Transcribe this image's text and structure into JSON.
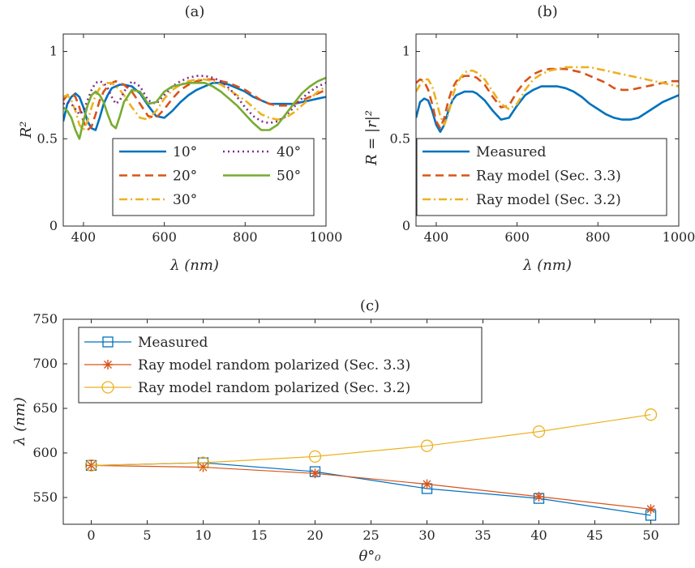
{
  "chart_data": [
    {
      "type": "line",
      "title": "(a)",
      "xlabel": "λ (nm)",
      "ylabel": "R²",
      "xlim": [
        350,
        1000
      ],
      "ylim": [
        0,
        1.1
      ],
      "xticks": [
        "400",
        "600",
        "800",
        "1000"
      ],
      "yticks": [
        "0",
        "0.5",
        "1"
      ],
      "legend_position": "bottom-right",
      "series": [
        {
          "name": "10°",
          "color": "#0072BD",
          "style": "solid",
          "x": [
            350,
            360,
            370,
            380,
            390,
            400,
            410,
            420,
            430,
            440,
            450,
            460,
            470,
            480,
            490,
            500,
            520,
            540,
            560,
            580,
            600,
            620,
            640,
            660,
            680,
            700,
            720,
            740,
            760,
            780,
            800,
            820,
            840,
            860,
            880,
            900,
            920,
            940,
            960,
            980,
            1000
          ],
          "y": [
            0.6,
            0.7,
            0.74,
            0.76,
            0.74,
            0.68,
            0.6,
            0.56,
            0.55,
            0.62,
            0.7,
            0.75,
            0.79,
            0.8,
            0.81,
            0.81,
            0.8,
            0.76,
            0.69,
            0.63,
            0.62,
            0.66,
            0.71,
            0.75,
            0.78,
            0.8,
            0.82,
            0.82,
            0.81,
            0.79,
            0.77,
            0.74,
            0.72,
            0.7,
            0.7,
            0.7,
            0.7,
            0.71,
            0.72,
            0.73,
            0.74
          ]
        },
        {
          "name": "20°",
          "color": "#D95319",
          "style": "dashed",
          "x": [
            350,
            360,
            370,
            380,
            390,
            400,
            410,
            420,
            430,
            440,
            450,
            460,
            470,
            480,
            490,
            500,
            520,
            540,
            560,
            580,
            600,
            620,
            640,
            660,
            680,
            700,
            720,
            740,
            760,
            780,
            800,
            820,
            840,
            860,
            880,
            900,
            920,
            940,
            960,
            980,
            1000
          ],
          "y": [
            0.72,
            0.75,
            0.76,
            0.74,
            0.68,
            0.6,
            0.55,
            0.57,
            0.64,
            0.72,
            0.77,
            0.8,
            0.82,
            0.83,
            0.82,
            0.81,
            0.77,
            0.7,
            0.63,
            0.62,
            0.67,
            0.73,
            0.78,
            0.81,
            0.83,
            0.84,
            0.84,
            0.83,
            0.82,
            0.8,
            0.78,
            0.75,
            0.72,
            0.7,
            0.69,
            0.69,
            0.7,
            0.72,
            0.74,
            0.76,
            0.78
          ]
        },
        {
          "name": "30°",
          "color": "#EDB120",
          "style": "dashdot",
          "x": [
            350,
            360,
            370,
            380,
            390,
            400,
            410,
            420,
            430,
            440,
            450,
            460,
            470,
            480,
            490,
            500,
            520,
            540,
            560,
            580,
            600,
            620,
            640,
            660,
            680,
            700,
            720,
            740,
            760,
            780,
            800,
            820,
            840,
            860,
            880,
            900,
            920,
            940,
            960,
            980,
            1000
          ],
          "y": [
            0.74,
            0.75,
            0.72,
            0.66,
            0.58,
            0.55,
            0.6,
            0.68,
            0.75,
            0.79,
            0.81,
            0.82,
            0.82,
            0.8,
            0.78,
            0.75,
            0.68,
            0.62,
            0.61,
            0.66,
            0.73,
            0.78,
            0.81,
            0.83,
            0.84,
            0.84,
            0.83,
            0.81,
            0.78,
            0.75,
            0.72,
            0.68,
            0.64,
            0.62,
            0.61,
            0.62,
            0.65,
            0.69,
            0.73,
            0.77,
            0.8
          ]
        },
        {
          "name": "40°",
          "color": "#7E2F8E",
          "style": "dotted",
          "x": [
            350,
            360,
            370,
            380,
            390,
            400,
            410,
            420,
            430,
            440,
            450,
            460,
            470,
            480,
            490,
            500,
            520,
            540,
            560,
            580,
            600,
            620,
            640,
            660,
            680,
            700,
            720,
            740,
            760,
            780,
            800,
            820,
            840,
            860,
            880,
            900,
            920,
            940,
            960,
            980,
            1000
          ],
          "y": [
            0.7,
            0.71,
            0.7,
            0.67,
            0.64,
            0.66,
            0.72,
            0.78,
            0.82,
            0.83,
            0.82,
            0.79,
            0.74,
            0.7,
            0.72,
            0.77,
            0.83,
            0.8,
            0.72,
            0.7,
            0.75,
            0.8,
            0.83,
            0.85,
            0.86,
            0.86,
            0.85,
            0.83,
            0.79,
            0.74,
            0.68,
            0.63,
            0.6,
            0.59,
            0.6,
            0.63,
            0.68,
            0.73,
            0.77,
            0.8,
            0.82
          ]
        },
        {
          "name": "50°",
          "color": "#77AC30",
          "style": "solid",
          "x": [
            350,
            360,
            370,
            380,
            390,
            400,
            410,
            420,
            430,
            440,
            450,
            460,
            470,
            480,
            490,
            500,
            520,
            540,
            560,
            580,
            600,
            620,
            640,
            660,
            680,
            700,
            720,
            740,
            760,
            780,
            800,
            820,
            840,
            860,
            880,
            900,
            920,
            940,
            960,
            980,
            1000
          ],
          "y": [
            0.68,
            0.66,
            0.62,
            0.55,
            0.5,
            0.6,
            0.69,
            0.75,
            0.77,
            0.75,
            0.71,
            0.64,
            0.58,
            0.56,
            0.63,
            0.71,
            0.78,
            0.77,
            0.7,
            0.71,
            0.77,
            0.8,
            0.81,
            0.82,
            0.82,
            0.82,
            0.8,
            0.77,
            0.73,
            0.69,
            0.64,
            0.59,
            0.55,
            0.55,
            0.58,
            0.64,
            0.7,
            0.76,
            0.8,
            0.83,
            0.85
          ]
        }
      ]
    },
    {
      "type": "line",
      "title": "(b)",
      "xlabel": "λ (nm)",
      "ylabel": "R = |r|²",
      "xlim": [
        350,
        1000
      ],
      "ylim": [
        0,
        1.1
      ],
      "xticks": [
        "400",
        "600",
        "800",
        "1000"
      ],
      "yticks": [
        "0",
        "0.5",
        "1"
      ],
      "legend_position": "bottom-right",
      "series": [
        {
          "name": "Measured",
          "color": "#0072BD",
          "style": "solid",
          "x": [
            350,
            360,
            370,
            380,
            390,
            400,
            410,
            420,
            430,
            440,
            450,
            460,
            470,
            480,
            490,
            500,
            520,
            540,
            560,
            580,
            600,
            620,
            640,
            660,
            680,
            700,
            720,
            740,
            760,
            780,
            800,
            820,
            840,
            860,
            880,
            900,
            920,
            940,
            960,
            980,
            1000
          ],
          "y": [
            0.62,
            0.71,
            0.73,
            0.72,
            0.66,
            0.58,
            0.54,
            0.58,
            0.66,
            0.72,
            0.75,
            0.76,
            0.77,
            0.77,
            0.77,
            0.76,
            0.72,
            0.66,
            0.61,
            0.62,
            0.69,
            0.75,
            0.78,
            0.8,
            0.8,
            0.8,
            0.79,
            0.77,
            0.74,
            0.7,
            0.67,
            0.64,
            0.62,
            0.61,
            0.61,
            0.62,
            0.65,
            0.68,
            0.71,
            0.73,
            0.75
          ]
        },
        {
          "name": "Ray model (Sec. 3.3)",
          "color": "#D95319",
          "style": "dashed",
          "x": [
            350,
            360,
            370,
            380,
            390,
            400,
            410,
            420,
            430,
            440,
            450,
            460,
            470,
            480,
            490,
            500,
            520,
            540,
            560,
            580,
            600,
            620,
            640,
            660,
            680,
            700,
            720,
            740,
            760,
            780,
            800,
            820,
            840,
            860,
            880,
            900,
            920,
            940,
            960,
            980,
            1000
          ],
          "y": [
            0.82,
            0.84,
            0.83,
            0.78,
            0.7,
            0.6,
            0.56,
            0.62,
            0.72,
            0.79,
            0.83,
            0.85,
            0.86,
            0.86,
            0.86,
            0.85,
            0.81,
            0.74,
            0.68,
            0.69,
            0.77,
            0.83,
            0.87,
            0.89,
            0.9,
            0.9,
            0.9,
            0.89,
            0.88,
            0.86,
            0.84,
            0.82,
            0.79,
            0.78,
            0.78,
            0.79,
            0.8,
            0.81,
            0.82,
            0.83,
            0.83
          ]
        },
        {
          "name": "Ray model (Sec. 3.2)",
          "color": "#EDB120",
          "style": "dashdot",
          "x": [
            350,
            360,
            370,
            380,
            390,
            400,
            410,
            420,
            430,
            440,
            450,
            460,
            470,
            480,
            490,
            500,
            520,
            540,
            560,
            580,
            600,
            620,
            640,
            660,
            680,
            700,
            720,
            740,
            760,
            780,
            800,
            820,
            840,
            860,
            880,
            900,
            920,
            940,
            960,
            980,
            1000
          ],
          "y": [
            0.77,
            0.81,
            0.84,
            0.84,
            0.8,
            0.72,
            0.63,
            0.58,
            0.64,
            0.74,
            0.81,
            0.85,
            0.88,
            0.89,
            0.89,
            0.88,
            0.84,
            0.77,
            0.7,
            0.67,
            0.7,
            0.78,
            0.84,
            0.87,
            0.89,
            0.9,
            0.91,
            0.91,
            0.91,
            0.91,
            0.9,
            0.89,
            0.88,
            0.87,
            0.86,
            0.85,
            0.84,
            0.83,
            0.82,
            0.81,
            0.8
          ]
        }
      ]
    },
    {
      "type": "line",
      "title": "(c)",
      "xlabel": "θ°₀",
      "ylabel": "λ (nm)",
      "xlim": [
        -2.5,
        52.5
      ],
      "ylim": [
        520,
        750
      ],
      "xticks": [
        "0",
        "5",
        "10",
        "15",
        "20",
        "25",
        "30",
        "35",
        "40",
        "45",
        "50"
      ],
      "yticks": [
        "550",
        "600",
        "650",
        "700",
        "750"
      ],
      "legend_position": "top-left",
      "x": [
        0,
        10,
        20,
        30,
        40,
        50
      ],
      "series": [
        {
          "name": "Measured",
          "color": "#0072BD",
          "marker": "square",
          "values": [
            586,
            589,
            579,
            560,
            549,
            530
          ]
        },
        {
          "name": "Ray model random polarized (Sec. 3.3)",
          "color": "#D95319",
          "marker": "asterisk",
          "values": [
            586,
            584,
            577,
            565,
            551,
            537
          ]
        },
        {
          "name": "Ray model random polarized (Sec. 3.2)",
          "color": "#EDB120",
          "marker": "circle",
          "values": [
            586,
            589,
            596,
            608,
            624,
            643
          ]
        }
      ]
    }
  ]
}
